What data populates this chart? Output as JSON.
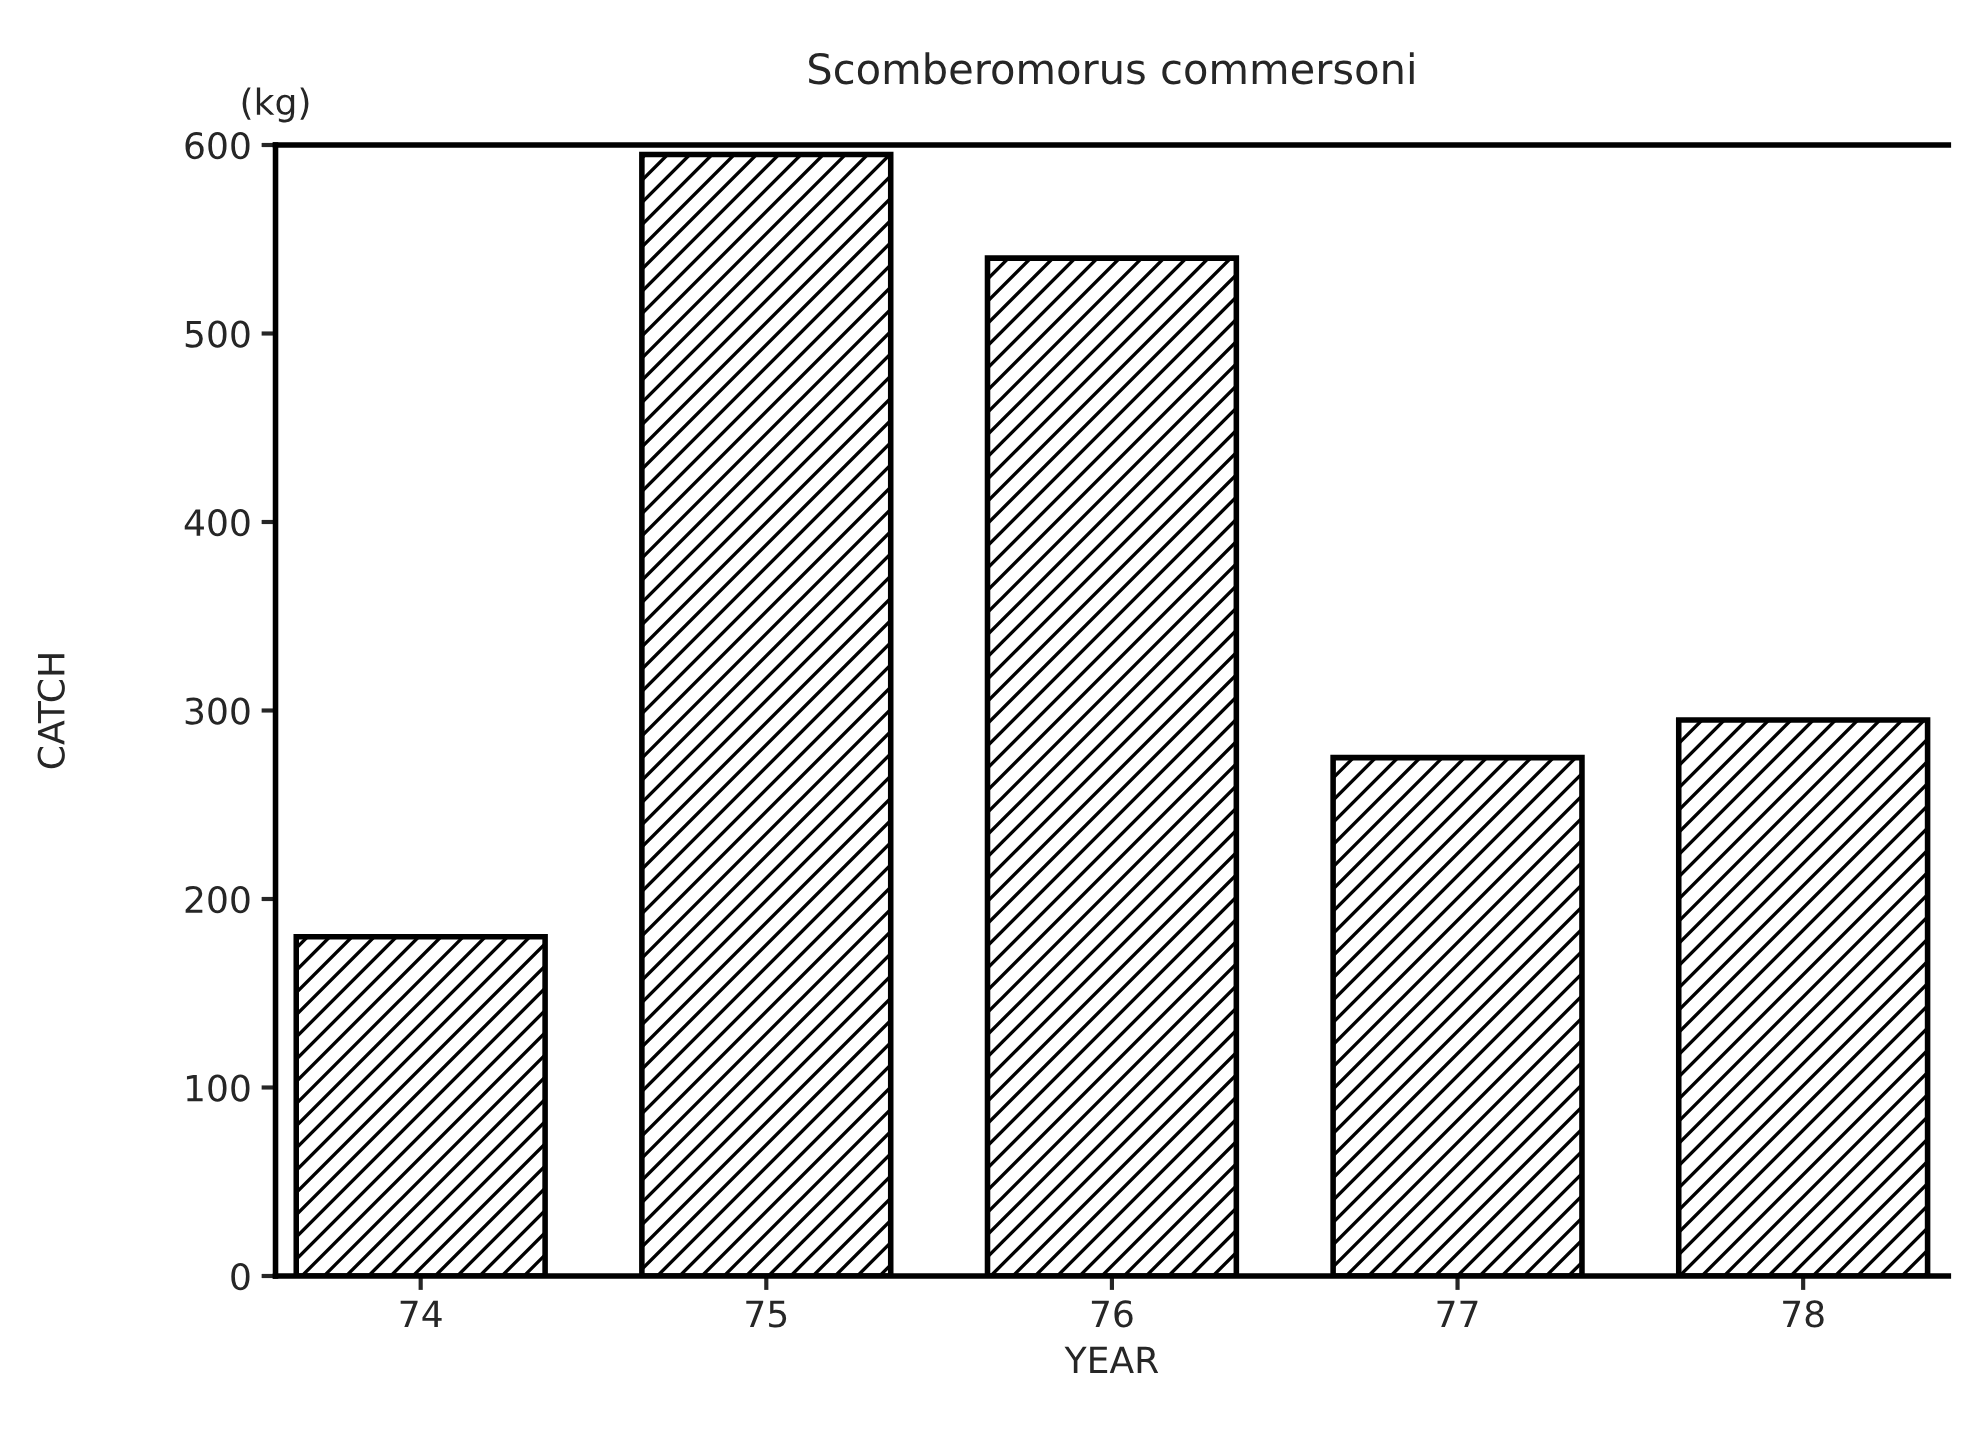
{
  "chart_data": {
    "type": "bar",
    "title": "Scomberomorus commersoni",
    "xlabel": "YEAR",
    "ylabel": "CATCH",
    "annotations": [
      "(kg)"
    ],
    "categories": [
      "74",
      "75",
      "76",
      "77",
      "78"
    ],
    "values": [
      180,
      595,
      540,
      275,
      295
    ],
    "color": "#000000",
    "ylim": [
      0,
      600
    ],
    "yticks": [
      0,
      100,
      200,
      300,
      400,
      500,
      600
    ],
    "grid": false
  }
}
